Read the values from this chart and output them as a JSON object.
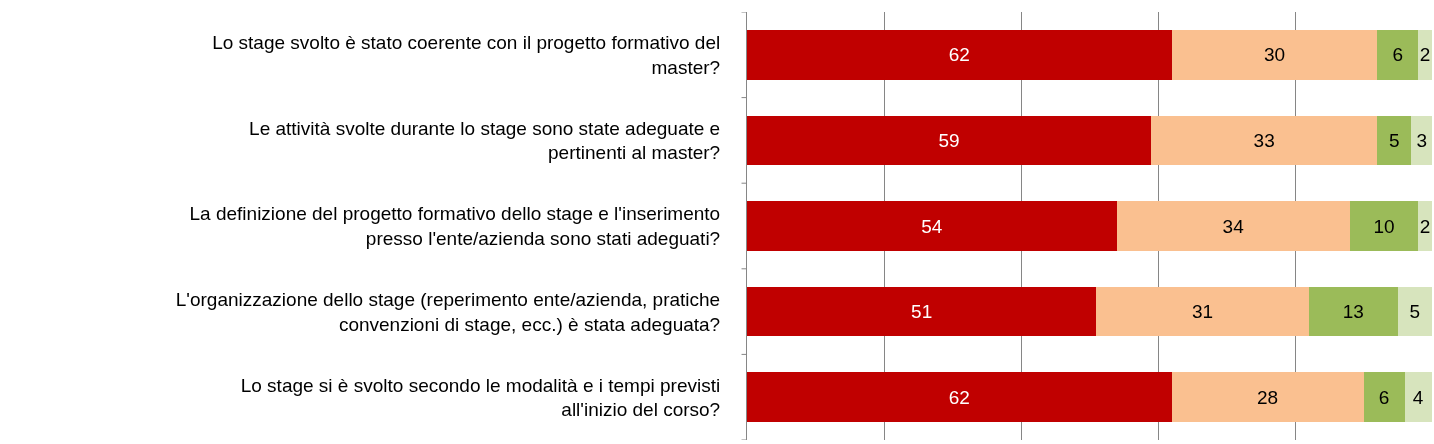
{
  "chart_data": {
    "type": "bar",
    "orientation": "horizontal",
    "stacked": true,
    "data_labels": true,
    "grid": "x",
    "tick_labels": "y",
    "categories": [
      "Lo stage svolto è stato coerente con il progetto formativo del master?",
      "Le attività svolte durante lo stage sono state adeguate e pertinenti al master?",
      "La definizione del progetto formativo dello stage e l'inserimento presso l'ente/azienda sono stati adeguati?",
      "L'organizzazione dello stage (reperimento ente/azienda, pratiche convenzioni di stage, ecc.) è stata adeguata?",
      "Lo stage si è svolto secondo le modalità e i tempi previsti all'inizio del corso?"
    ],
    "xlim": [
      0,
      100
    ],
    "xticks": [
      {
        "value": 0,
        "label": null
      },
      {
        "value": 20,
        "label": null
      },
      {
        "value": 40,
        "label": null
      },
      {
        "value": 60,
        "label": null
      },
      {
        "value": 80,
        "label": null
      },
      {
        "value": 100,
        "label": null
      }
    ],
    "series": [
      {
        "color": "#c00000",
        "values": [
          62,
          59,
          54,
          51,
          62
        ]
      },
      {
        "color": "#fac090",
        "values": [
          30,
          33,
          34,
          31,
          28
        ]
      },
      {
        "color": "#9bbb59",
        "values": [
          6,
          5,
          10,
          13,
          6
        ]
      },
      {
        "color": "#d7e4bd",
        "values": [
          2,
          3,
          2,
          5,
          4
        ]
      }
    ]
  }
}
